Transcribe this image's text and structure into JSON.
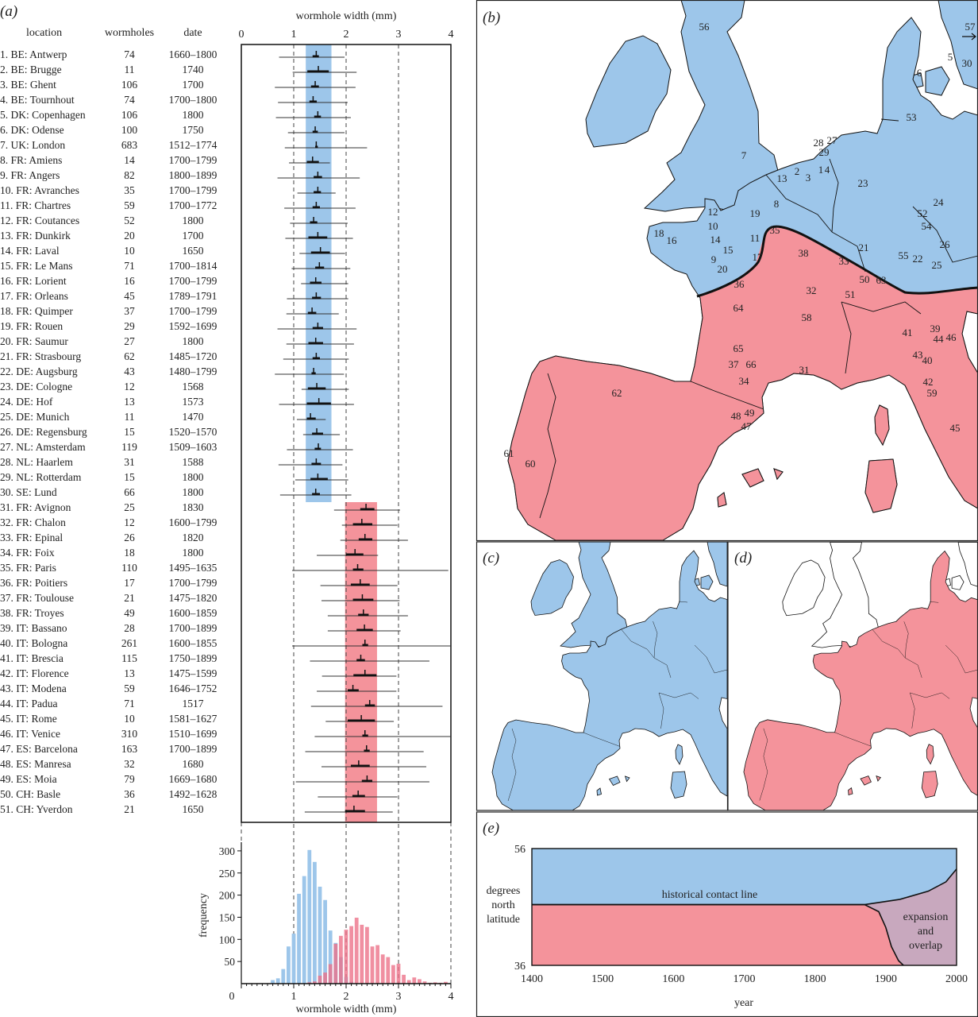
{
  "panel_labels": {
    "a": "(a)",
    "b": "(b)",
    "c": "(c)",
    "d": "(d)",
    "e": "(e)"
  },
  "colors": {
    "blue": "#9dc6ea",
    "red": "#f4939b",
    "hist_red": "#ec6f86",
    "overlap": "#c8a8be",
    "line": "#111111"
  },
  "table": {
    "headers": {
      "location": "location",
      "wormholes": "wormholes",
      "date": "date"
    },
    "rows": [
      {
        "location": "1. BE: Antwerp",
        "wormholes": "74",
        "date": "1660–1800"
      },
      {
        "location": "2. BE: Brugge",
        "wormholes": "11",
        "date": "1740"
      },
      {
        "location": "3. BE: Ghent",
        "wormholes": "106",
        "date": "1700"
      },
      {
        "location": "4. BE: Tournhout",
        "wormholes": "74",
        "date": "1700–1800"
      },
      {
        "location": "5. DK: Copenhagen",
        "wormholes": "106",
        "date": "1800"
      },
      {
        "location": "6. DK: Odense",
        "wormholes": "100",
        "date": "1750"
      },
      {
        "location": "7. UK: London",
        "wormholes": "683",
        "date": "1512–1774"
      },
      {
        "location": "8. FR: Amiens",
        "wormholes": "14",
        "date": "1700–1799"
      },
      {
        "location": "9. FR: Angers",
        "wormholes": "82",
        "date": "1800–1899"
      },
      {
        "location": "10. FR: Avranches",
        "wormholes": "35",
        "date": "1700–1799"
      },
      {
        "location": "11. FR: Chartres",
        "wormholes": "59",
        "date": "1700–1772"
      },
      {
        "location": "12. FR: Coutances",
        "wormholes": "52",
        "date": "1800"
      },
      {
        "location": "13. FR: Dunkirk",
        "wormholes": "20",
        "date": "1700"
      },
      {
        "location": "14. FR: Laval",
        "wormholes": "10",
        "date": "1650"
      },
      {
        "location": "15. FR: Le Mans",
        "wormholes": "71",
        "date": "1700–1814"
      },
      {
        "location": "16. FR: Lorient",
        "wormholes": "16",
        "date": "1700–1799"
      },
      {
        "location": "17. FR: Orleans",
        "wormholes": "45",
        "date": "1789–1791"
      },
      {
        "location": "18. FR: Quimper",
        "wormholes": "37",
        "date": "1700–1799"
      },
      {
        "location": "19. FR: Rouen",
        "wormholes": "29",
        "date": "1592–1699"
      },
      {
        "location": "20. FR: Saumur",
        "wormholes": "27",
        "date": "1800"
      },
      {
        "location": "21. FR: Strasbourg",
        "wormholes": "62",
        "date": "1485–1720"
      },
      {
        "location": "22. DE: Augsburg",
        "wormholes": "43",
        "date": "1480–1799"
      },
      {
        "location": "23. DE: Cologne",
        "wormholes": "12",
        "date": "1568"
      },
      {
        "location": "24. DE: Hof",
        "wormholes": "13",
        "date": "1573"
      },
      {
        "location": "25. DE: Munich",
        "wormholes": "11",
        "date": "1470"
      },
      {
        "location": "26. DE: Regensburg",
        "wormholes": "15",
        "date": "1520–1570"
      },
      {
        "location": "27. NL: Amsterdam",
        "wormholes": "119",
        "date": "1509–1603"
      },
      {
        "location": "28. NL: Haarlem",
        "wormholes": "31",
        "date": "1588"
      },
      {
        "location": "29. NL: Rotterdam",
        "wormholes": "15",
        "date": "1800"
      },
      {
        "location": "30. SE: Lund",
        "wormholes": "66",
        "date": "1800"
      },
      {
        "location": "31. FR: Avignon",
        "wormholes": "25",
        "date": "1830"
      },
      {
        "location": "32. FR: Chalon",
        "wormholes": "12",
        "date": "1600–1799"
      },
      {
        "location": "33. FR: Epinal",
        "wormholes": "26",
        "date": "1820"
      },
      {
        "location": "34. FR: Foix",
        "wormholes": "18",
        "date": "1800"
      },
      {
        "location": "35. FR: Paris",
        "wormholes": "110",
        "date": "1495–1635"
      },
      {
        "location": "36. FR: Poitiers",
        "wormholes": "17",
        "date": "1700–1799"
      },
      {
        "location": "37. FR: Toulouse",
        "wormholes": "21",
        "date": "1475–1820"
      },
      {
        "location": "38. FR: Troyes",
        "wormholes": "49",
        "date": "1600–1859"
      },
      {
        "location": "39. IT: Bassano",
        "wormholes": "28",
        "date": "1700–1899"
      },
      {
        "location": "40. IT: Bologna",
        "wormholes": "261",
        "date": "1600–1855"
      },
      {
        "location": "41. IT: Brescia",
        "wormholes": "115",
        "date": "1750–1899"
      },
      {
        "location": "42. IT: Florence",
        "wormholes": "13",
        "date": "1475–1599"
      },
      {
        "location": "43. IT: Modena",
        "wormholes": "59",
        "date": "1646–1752"
      },
      {
        "location": "44. IT: Padua",
        "wormholes": "71",
        "date": "1517"
      },
      {
        "location": "45. IT: Rome",
        "wormholes": "10",
        "date": "1581–1627"
      },
      {
        "location": "46. IT: Venice",
        "wormholes": "310",
        "date": "1510–1699"
      },
      {
        "location": "47. ES: Barcelona",
        "wormholes": "163",
        "date": "1700–1899"
      },
      {
        "location": "48. ES: Manresa",
        "wormholes": "32",
        "date": "1680"
      },
      {
        "location": "49. ES: Moia",
        "wormholes": "79",
        "date": "1669–1680"
      },
      {
        "location": "50. CH: Basle",
        "wormholes": "36",
        "date": "1492–1628"
      },
      {
        "location": "51. CH: Yverdon",
        "wormholes": "21",
        "date": "1650"
      }
    ]
  },
  "chart_data": [
    {
      "type": "scatter",
      "xlabel": "wormhole width (mm)",
      "xlim": [
        0,
        4
      ],
      "xticks": [
        0,
        1,
        2,
        3,
        4
      ],
      "grid": "dashed vertical at 1, 2, 3",
      "bands": [
        {
          "color": "#9dc6ea",
          "range": [
            1.23,
            1.72
          ],
          "rows": [
            1,
            30
          ]
        },
        {
          "color": "#f4939b",
          "range": [
            1.98,
            2.59
          ],
          "rows": [
            31,
            51
          ]
        }
      ],
      "rows": [
        {
          "min": 0.72,
          "max": 1.97,
          "mean": 1.43,
          "ci": [
            1.36,
            1.48
          ]
        },
        {
          "min": 0.98,
          "max": 2.2,
          "mean": 1.47,
          "ci": [
            1.26,
            1.67
          ]
        },
        {
          "min": 0.64,
          "max": 2.18,
          "mean": 1.41,
          "ci": [
            1.33,
            1.48
          ]
        },
        {
          "min": 0.7,
          "max": 2.03,
          "mean": 1.37,
          "ci": [
            1.3,
            1.44
          ]
        },
        {
          "min": 0.66,
          "max": 2.09,
          "mean": 1.46,
          "ci": [
            1.39,
            1.52
          ]
        },
        {
          "min": 0.89,
          "max": 1.97,
          "mean": 1.41,
          "ci": [
            1.36,
            1.46
          ]
        },
        {
          "min": 0.83,
          "max": 2.4,
          "mean": 1.43,
          "ci": [
            1.41,
            1.46
          ]
        },
        {
          "min": 0.91,
          "max": 1.69,
          "mean": 1.36,
          "ci": [
            1.25,
            1.48
          ]
        },
        {
          "min": 0.69,
          "max": 2.26,
          "mean": 1.46,
          "ci": [
            1.38,
            1.54
          ]
        },
        {
          "min": 1.07,
          "max": 1.8,
          "mean": 1.46,
          "ci": [
            1.38,
            1.52
          ]
        },
        {
          "min": 0.82,
          "max": 2.18,
          "mean": 1.43,
          "ci": [
            1.36,
            1.5
          ]
        },
        {
          "min": 0.93,
          "max": 2.03,
          "mean": 1.38,
          "ci": [
            1.31,
            1.45
          ]
        },
        {
          "min": 0.84,
          "max": 2.13,
          "mean": 1.46,
          "ci": [
            1.28,
            1.64
          ]
        },
        {
          "min": 1.11,
          "max": 1.98,
          "mean": 1.51,
          "ci": [
            1.33,
            1.69
          ]
        },
        {
          "min": 0.96,
          "max": 2.08,
          "mean": 1.49,
          "ci": [
            1.41,
            1.58
          ]
        },
        {
          "min": 1.14,
          "max": 2.04,
          "mean": 1.42,
          "ci": [
            1.31,
            1.53
          ]
        },
        {
          "min": 0.87,
          "max": 2.04,
          "mean": 1.43,
          "ci": [
            1.35,
            1.52
          ]
        },
        {
          "min": 0.86,
          "max": 1.86,
          "mean": 1.35,
          "ci": [
            1.27,
            1.43
          ]
        },
        {
          "min": 0.69,
          "max": 2.2,
          "mean": 1.46,
          "ci": [
            1.36,
            1.56
          ]
        },
        {
          "min": 0.86,
          "max": 2.15,
          "mean": 1.42,
          "ci": [
            1.28,
            1.56
          ]
        },
        {
          "min": 0.8,
          "max": 2.05,
          "mean": 1.43,
          "ci": [
            1.36,
            1.5
          ]
        },
        {
          "min": 0.64,
          "max": 1.96,
          "mean": 1.38,
          "ci": [
            1.34,
            1.42
          ]
        },
        {
          "min": 1.15,
          "max": 2.05,
          "mean": 1.44,
          "ci": [
            1.27,
            1.61
          ]
        },
        {
          "min": 0.72,
          "max": 2.15,
          "mean": 1.48,
          "ci": [
            1.25,
            1.71
          ]
        },
        {
          "min": 1.06,
          "max": 1.61,
          "mean": 1.32,
          "ci": [
            1.25,
            1.42
          ]
        },
        {
          "min": 1.18,
          "max": 1.88,
          "mean": 1.44,
          "ci": [
            1.35,
            1.56
          ]
        },
        {
          "min": 0.87,
          "max": 2.13,
          "mean": 1.47,
          "ci": [
            1.4,
            1.52
          ]
        },
        {
          "min": 0.71,
          "max": 1.93,
          "mean": 1.43,
          "ci": [
            1.34,
            1.52
          ]
        },
        {
          "min": 1.03,
          "max": 2.04,
          "mean": 1.46,
          "ci": [
            1.32,
            1.65
          ]
        },
        {
          "min": 0.74,
          "max": 2.1,
          "mean": 1.42,
          "ci": [
            1.35,
            1.5
          ]
        },
        {
          "min": 1.77,
          "max": 3.03,
          "mean": 2.38,
          "ci": [
            2.27,
            2.54
          ]
        },
        {
          "min": 1.92,
          "max": 2.98,
          "mean": 2.3,
          "ci": [
            2.13,
            2.5
          ]
        },
        {
          "min": 1.89,
          "max": 3.18,
          "mean": 2.36,
          "ci": [
            2.24,
            2.5
          ]
        },
        {
          "min": 1.44,
          "max": 2.61,
          "mean": 2.17,
          "ci": [
            2.0,
            2.33
          ]
        },
        {
          "min": 0.97,
          "max": 3.95,
          "mean": 2.22,
          "ci": [
            2.13,
            2.33
          ]
        },
        {
          "min": 1.51,
          "max": 2.98,
          "mean": 2.27,
          "ci": [
            2.09,
            2.45
          ]
        },
        {
          "min": 1.53,
          "max": 3.02,
          "mean": 2.31,
          "ci": [
            2.13,
            2.52
          ]
        },
        {
          "min": 1.65,
          "max": 3.18,
          "mean": 2.33,
          "ci": [
            2.23,
            2.43
          ]
        },
        {
          "min": 1.65,
          "max": 3.04,
          "mean": 2.35,
          "ci": [
            2.2,
            2.51
          ]
        },
        {
          "min": 0.97,
          "max": 4.0,
          "mean": 2.36,
          "ci": [
            2.31,
            2.42
          ]
        },
        {
          "min": 1.31,
          "max": 3.59,
          "mean": 2.28,
          "ci": [
            2.2,
            2.36
          ]
        },
        {
          "min": 1.54,
          "max": 2.96,
          "mean": 2.36,
          "ci": [
            2.14,
            2.58
          ]
        },
        {
          "min": 1.44,
          "max": 2.96,
          "mean": 2.13,
          "ci": [
            2.03,
            2.24
          ]
        },
        {
          "min": 1.33,
          "max": 3.84,
          "mean": 2.45,
          "ci": [
            2.36,
            2.55
          ]
        },
        {
          "min": 1.61,
          "max": 2.91,
          "mean": 2.29,
          "ci": [
            2.03,
            2.55
          ]
        },
        {
          "min": 1.4,
          "max": 4.0,
          "mean": 2.36,
          "ci": [
            2.31,
            2.42
          ]
        },
        {
          "min": 1.22,
          "max": 3.48,
          "mean": 2.39,
          "ci": [
            2.34,
            2.45
          ]
        },
        {
          "min": 1.53,
          "max": 3.53,
          "mean": 2.24,
          "ci": [
            2.09,
            2.45
          ]
        },
        {
          "min": 1.04,
          "max": 3.59,
          "mean": 2.4,
          "ci": [
            2.3,
            2.5
          ]
        },
        {
          "min": 1.46,
          "max": 2.98,
          "mean": 2.23,
          "ci": [
            2.12,
            2.36
          ]
        },
        {
          "min": 1.21,
          "max": 2.89,
          "mean": 2.15,
          "ci": [
            1.98,
            2.36
          ]
        }
      ]
    },
    {
      "type": "bar",
      "xlabel": "wormhole width (mm)",
      "ylabel": "frequency",
      "xlim": [
        0,
        4
      ],
      "xticks": [
        0,
        1,
        2,
        3,
        4
      ],
      "yticks": [
        50,
        100,
        150,
        200,
        250,
        300
      ],
      "ylim": [
        0,
        320
      ],
      "series": [
        {
          "color": "#9dc6ea",
          "x": [
            0.6,
            0.7,
            0.8,
            0.9,
            1.0,
            1.1,
            1.2,
            1.3,
            1.4,
            1.5,
            1.6,
            1.7,
            1.8,
            1.9,
            2.0,
            2.1
          ],
          "values": [
            8,
            12,
            33,
            84,
            113,
            203,
            243,
            302,
            275,
            219,
            189,
            120,
            92,
            60,
            15,
            4
          ]
        },
        {
          "color": "#ec6f86",
          "x": [
            1.3,
            1.4,
            1.5,
            1.6,
            1.7,
            1.8,
            1.9,
            2.0,
            2.1,
            2.2,
            2.3,
            2.4,
            2.5,
            2.6,
            2.7,
            2.8,
            2.9,
            3.0,
            3.1,
            3.2,
            3.3,
            3.4,
            3.5,
            3.6,
            3.7,
            3.8,
            3.9
          ],
          "values": [
            3,
            5,
            18,
            25,
            44,
            90,
            108,
            122,
            130,
            149,
            133,
            128,
            84,
            87,
            66,
            60,
            42,
            45,
            20,
            8,
            14,
            10,
            5,
            2,
            3,
            2,
            4
          ]
        }
      ]
    },
    {
      "type": "area",
      "xlabel": "year",
      "ylabel": "degrees north latitude",
      "xlim": [
        1400,
        2000
      ],
      "ylim": [
        36,
        56
      ],
      "xticks": [
        1400,
        1500,
        1600,
        1700,
        1800,
        1900,
        2000
      ],
      "yticks": [
        36,
        56
      ],
      "contact_latitude": 46.4,
      "northern_boundary": [
        [
          1400,
          46.4
        ],
        [
          1870,
          46.4
        ],
        [
          1920,
          47.3
        ],
        [
          1960,
          48.7
        ],
        [
          1985,
          50.3
        ],
        [
          2000,
          52.5
        ]
      ],
      "southern_boundary": [
        [
          1400,
          46.4
        ],
        [
          1870,
          46.4
        ],
        [
          1890,
          45.2
        ],
        [
          1900,
          42.5
        ],
        [
          1908,
          39.2
        ],
        [
          1918,
          36.8
        ],
        [
          1925,
          36
        ]
      ],
      "annotations": {
        "contact": "historical contact line",
        "overlap": "expansion and overlap"
      },
      "fills": {
        "north": "#9dc6ea",
        "south": "#f4939b",
        "overlap": "#c8a8be"
      }
    }
  ],
  "map": {
    "labels": [
      "56",
      "57",
      "5",
      "30",
      "6",
      "53",
      "7",
      "28",
      "27",
      "29",
      "2",
      "3",
      "1",
      "4",
      "13",
      "23",
      "24",
      "52",
      "54",
      "8",
      "19",
      "12",
      "10",
      "18",
      "16",
      "14",
      "15",
      "11",
      "35",
      "38",
      "33",
      "21",
      "26",
      "55",
      "22",
      "25",
      "9",
      "20",
      "17",
      "36",
      "50",
      "63",
      "51",
      "32",
      "64",
      "58",
      "41",
      "39",
      "44",
      "46",
      "65",
      "37",
      "66",
      "43",
      "40",
      "31",
      "34",
      "42",
      "59",
      "62",
      "48",
      "49",
      "47",
      "45",
      "61",
      "60"
    ]
  }
}
